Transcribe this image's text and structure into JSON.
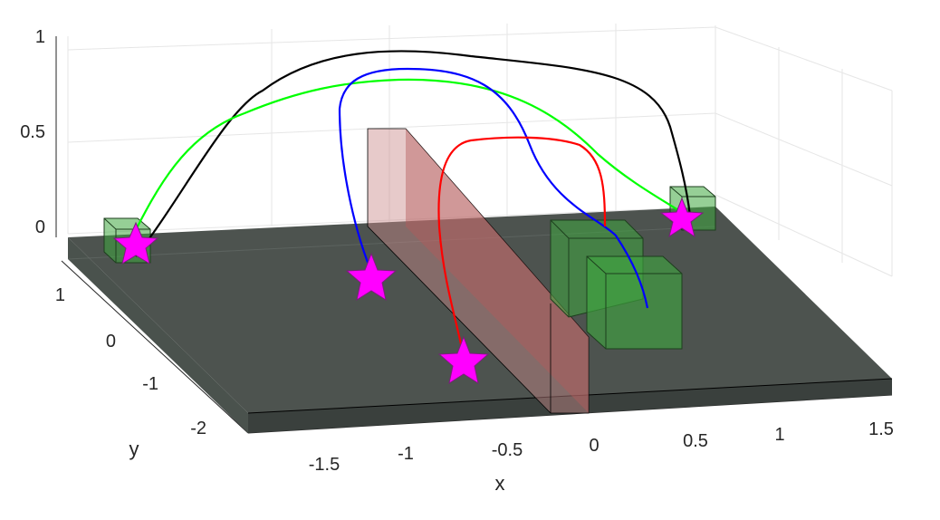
{
  "chart_data": {
    "type": "line3d",
    "xlabel": "x",
    "ylabel": "y",
    "zlabel": "",
    "xlim": [
      -1.75,
      1.75
    ],
    "ylim": [
      -2.5,
      1.5
    ],
    "zlim": [
      0,
      1
    ],
    "x_ticks": [
      "-1.5",
      "-1",
      "-0.5",
      "0",
      "0.5",
      "1",
      "1.5"
    ],
    "y_ticks": [
      "1",
      "0",
      "-1",
      "-2"
    ],
    "z_ticks": [
      "0",
      "0.5",
      "1"
    ],
    "grid": true,
    "floor_color": "#3f4642",
    "wall_color": "#c98a8a",
    "box_color": "#3fa83f",
    "star_color": "#ff00ff",
    "series": [
      {
        "color": "#000000",
        "points": [
          [
            -1.7,
            1.0,
            0.0
          ],
          [
            -1.2,
            0.6,
            0.6
          ],
          [
            -0.4,
            0.0,
            0.98
          ],
          [
            0.6,
            -0.6,
            0.92
          ],
          [
            1.3,
            -0.9,
            0.5
          ],
          [
            1.55,
            -1.05,
            0.15
          ]
        ]
      },
      {
        "color": "#00ff00",
        "points": [
          [
            -1.7,
            1.0,
            0.0
          ],
          [
            -1.3,
            0.8,
            0.45
          ],
          [
            -0.3,
            0.2,
            0.78
          ],
          [
            0.8,
            -0.4,
            0.6
          ],
          [
            1.45,
            -0.9,
            0.15
          ],
          [
            1.55,
            -1.0,
            0.0
          ]
        ]
      },
      {
        "color": "#0000ff",
        "points": [
          [
            -0.6,
            0.3,
            0.0
          ],
          [
            -0.7,
            0.2,
            0.5
          ],
          [
            -0.3,
            0.0,
            0.9
          ],
          [
            0.3,
            -0.4,
            0.85
          ],
          [
            0.7,
            -0.8,
            0.4
          ],
          [
            0.8,
            -1.0,
            0.0
          ]
        ]
      },
      {
        "color": "#ff0000",
        "points": [
          [
            -0.2,
            -0.5,
            0.0
          ],
          [
            -0.1,
            -0.4,
            0.5
          ],
          [
            0.2,
            -0.5,
            0.75
          ],
          [
            0.6,
            -0.6,
            0.7
          ],
          [
            0.7,
            -0.7,
            0.4
          ],
          [
            0.75,
            -0.75,
            0.0
          ]
        ]
      }
    ],
    "stars": [
      [
        -1.7,
        1.0,
        0.0
      ],
      [
        -0.6,
        0.3,
        0.0
      ],
      [
        -0.2,
        -0.5,
        0.0
      ],
      [
        1.55,
        -1.0,
        0.0
      ]
    ]
  }
}
